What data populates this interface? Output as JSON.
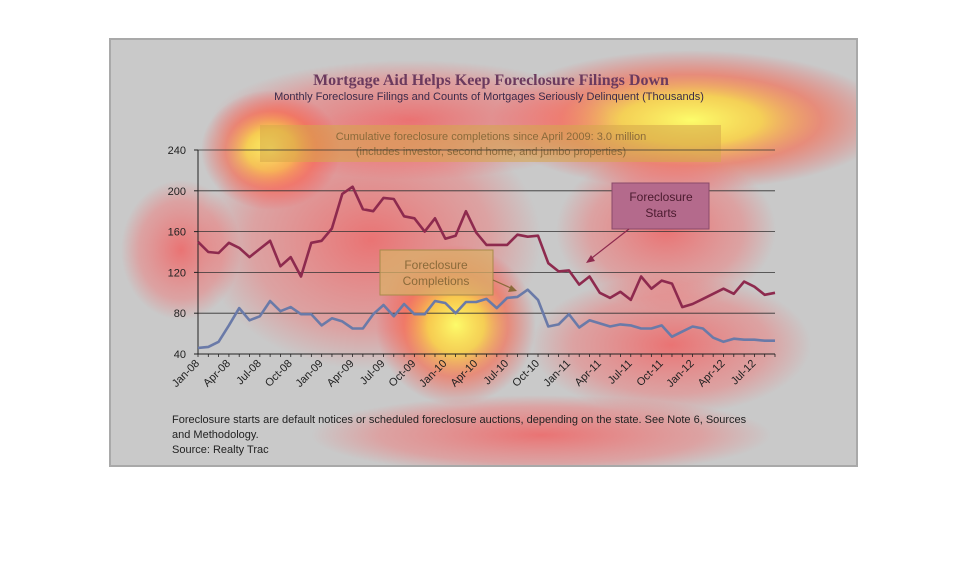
{
  "chart_data": {
    "type": "line",
    "title": "Mortgage Aid Helps Keep Foreclosure Filings Down",
    "subtitle": "Monthly Foreclosure Filings and Counts of Mortgages Seriously Delinquent (Thousands)",
    "annotation": [
      "Cumulative foreclosure completions since April 2009: 3.0 million",
      "(includes investor, second home, and jumbo properties)"
    ],
    "labels": {
      "starts": [
        "Foreclosure",
        "Starts"
      ],
      "completions": [
        "Foreclosure",
        "Completions"
      ]
    },
    "yticks": [
      40,
      80,
      120,
      160,
      200,
      240
    ],
    "ylim": [
      40,
      240
    ],
    "xticks": [
      "Jan-08",
      "Apr-08",
      "Jul-08",
      "Oct-08",
      "Jan-09",
      "Apr-09",
      "Jul-09",
      "Oct-09",
      "Jan-10",
      "Apr-10",
      "Jul-10",
      "Oct-10",
      "Jan-11",
      "Apr-11",
      "Jul-11",
      "Oct-11",
      "Jan-12",
      "Apr-12",
      "Jul-12"
    ],
    "x_months": 56,
    "grid": true,
    "series": [
      {
        "name": "Foreclosure Starts",
        "color": "#8e2a4e",
        "values": [
          150,
          140,
          139,
          149,
          144,
          135,
          143,
          151,
          126,
          135,
          116,
          149,
          151,
          163,
          197,
          204,
          182,
          180,
          193,
          192,
          175,
          173,
          160,
          173,
          153,
          156,
          180,
          159,
          147,
          147,
          147,
          157,
          155,
          156,
          129,
          121,
          122,
          108,
          116,
          100,
          95,
          101,
          93,
          116,
          104,
          112,
          109,
          86,
          89,
          94,
          99,
          104,
          99,
          111,
          106,
          98,
          100
        ]
      },
      {
        "name": "Foreclosure Completions",
        "color": "#6a7aa8",
        "values": [
          46,
          47,
          52,
          68,
          85,
          73,
          77,
          92,
          82,
          86,
          79,
          79,
          68,
          75,
          72,
          65,
          65,
          79,
          88,
          77,
          89,
          79,
          79,
          92,
          90,
          80,
          91,
          91,
          94,
          85,
          95,
          96,
          103,
          93,
          67,
          69,
          79,
          66,
          73,
          70,
          67,
          69,
          68,
          65,
          65,
          68,
          57,
          62,
          67,
          65,
          56,
          52,
          55,
          54,
          54,
          53,
          53
        ]
      }
    ],
    "footnote": [
      "Foreclosure starts are default notices or scheduled foreclosure auctions, depending on the state. See Note 6, Sources",
      "and Methodology.",
      "Source: Realty Trac"
    ]
  }
}
